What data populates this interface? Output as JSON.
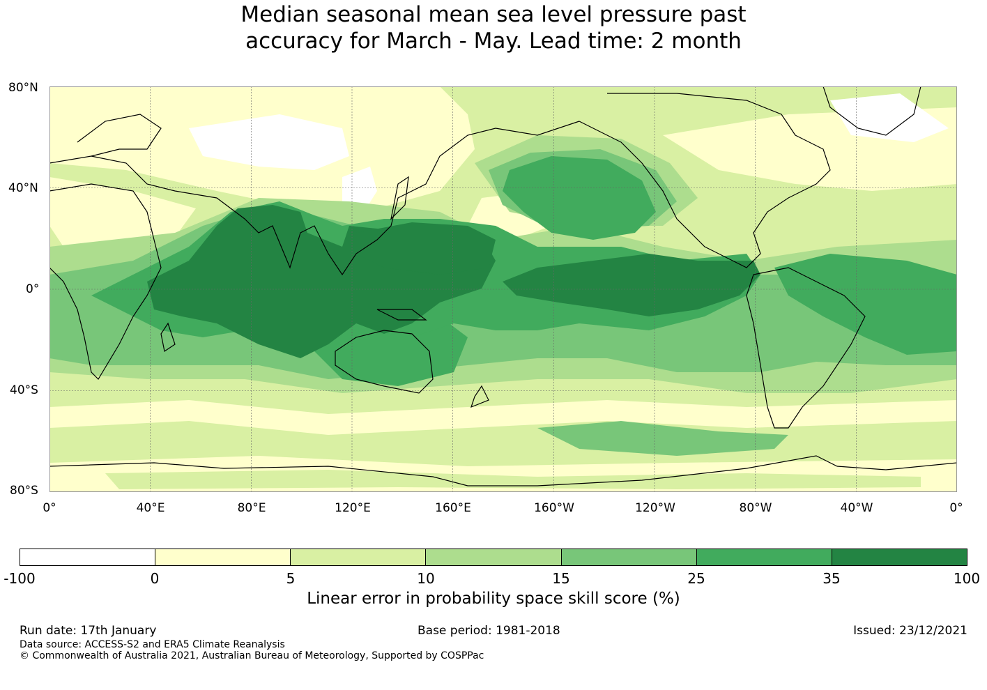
{
  "title": {
    "line1": "Median seasonal mean sea level pressure past",
    "line2": "accuracy for March - May. Lead time: 2 month"
  },
  "map": {
    "lat_labels": [
      "80°N",
      "40°N",
      "0°",
      "40°S",
      "80°S"
    ],
    "lon_labels": [
      "0°",
      "40°E",
      "80°E",
      "120°E",
      "160°E",
      "160°W",
      "120°W",
      "80°W",
      "40°W",
      "0°"
    ],
    "regions": [
      "Indian Ocean and Maritime Continent: 35-100",
      "Equatorial central-east Pacific: 35-100",
      "North Pacific: 25-35",
      "Tropical Atlantic: 25-35",
      "Southern Ocean: 5-15",
      "Eurasia high latitudes: -100-5"
    ]
  },
  "colorbar": {
    "colors": [
      "#ffffff",
      "#ffffcc",
      "#d9f0a3",
      "#addd8e",
      "#78c679",
      "#41ab5d",
      "#238443"
    ],
    "ticks": [
      "-100",
      "0",
      "5",
      "10",
      "15",
      "25",
      "35",
      "100"
    ],
    "label": "Linear error in probability space skill score (%)"
  },
  "footer": {
    "run_date": "Run date: 17th January",
    "base_period": "Base period: 1981-2018",
    "issued": "Issued: 23/12/2021",
    "data_source": "Data source: ACCESS-S2 and ERA5 Climate Reanalysis",
    "copyright": "© Commonwealth of Australia 2021, Australian Bureau of Meteorology, Supported by COSPPac"
  }
}
